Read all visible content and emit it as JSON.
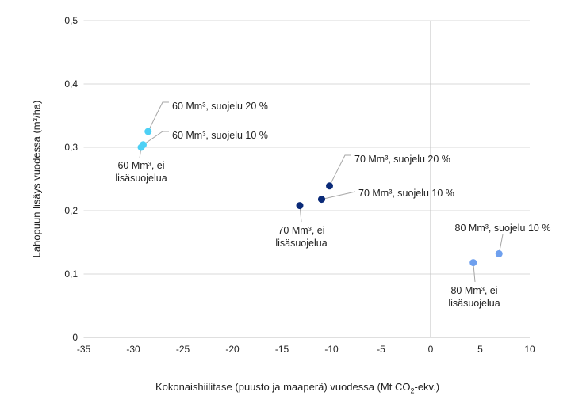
{
  "chart_data": {
    "type": "scatter",
    "title": "",
    "xlabel": "Kokonaishiilitase  (puusto ja maaperä) vuodessa (Mt CO₂-ekv.)",
    "xlabel_parts": [
      "Kokonaishiilitase  (puusto ja maaperä) vuodessa (Mt CO",
      "2",
      "-ekv.)"
    ],
    "ylabel": "Lahopuun lisäys vuodessa (m³/ha)",
    "xlim": [
      -35,
      10
    ],
    "ylim": [
      0,
      0.5
    ],
    "xticks": [
      "-35",
      "-30",
      "-25",
      "-20",
      "-15",
      "-10",
      "-5",
      "0",
      "5",
      "10"
    ],
    "yticks": [
      "0",
      "0,1",
      "0,2",
      "0,3",
      "0,4",
      "0,5"
    ],
    "grid": "horizontal",
    "points": [
      {
        "label": [
          "60 Mm³, suojelu 20 %"
        ],
        "x": -28.5,
        "y": 0.325,
        "color": "#4dd0f5"
      },
      {
        "label": [
          "60 Mm³, suojelu 10 %"
        ],
        "x": -29.0,
        "y": 0.304,
        "color": "#4dd0f5"
      },
      {
        "label": [
          "60 Mm³, ei",
          "lisäsuojelua"
        ],
        "x": -29.2,
        "y": 0.3,
        "color": "#4dd0f5"
      },
      {
        "label": [
          "70 Mm³, suojelu 20 %"
        ],
        "x": -10.2,
        "y": 0.239,
        "color": "#0a2a78"
      },
      {
        "label": [
          "70 Mm³, suojelu 10 %"
        ],
        "x": -11.0,
        "y": 0.218,
        "color": "#0a2a78"
      },
      {
        "label": [
          "70 Mm³, ei",
          "lisäsuojelua"
        ],
        "x": -13.2,
        "y": 0.208,
        "color": "#0a2a78"
      },
      {
        "label": [
          "80 Mm³, suojelu 10 %"
        ],
        "x": 6.9,
        "y": 0.132,
        "color": "#6fa0ee"
      },
      {
        "label": [
          "80 Mm³, ei",
          "lisäsuojelua"
        ],
        "x": 4.3,
        "y": 0.118,
        "color": "#6fa0ee"
      }
    ]
  }
}
